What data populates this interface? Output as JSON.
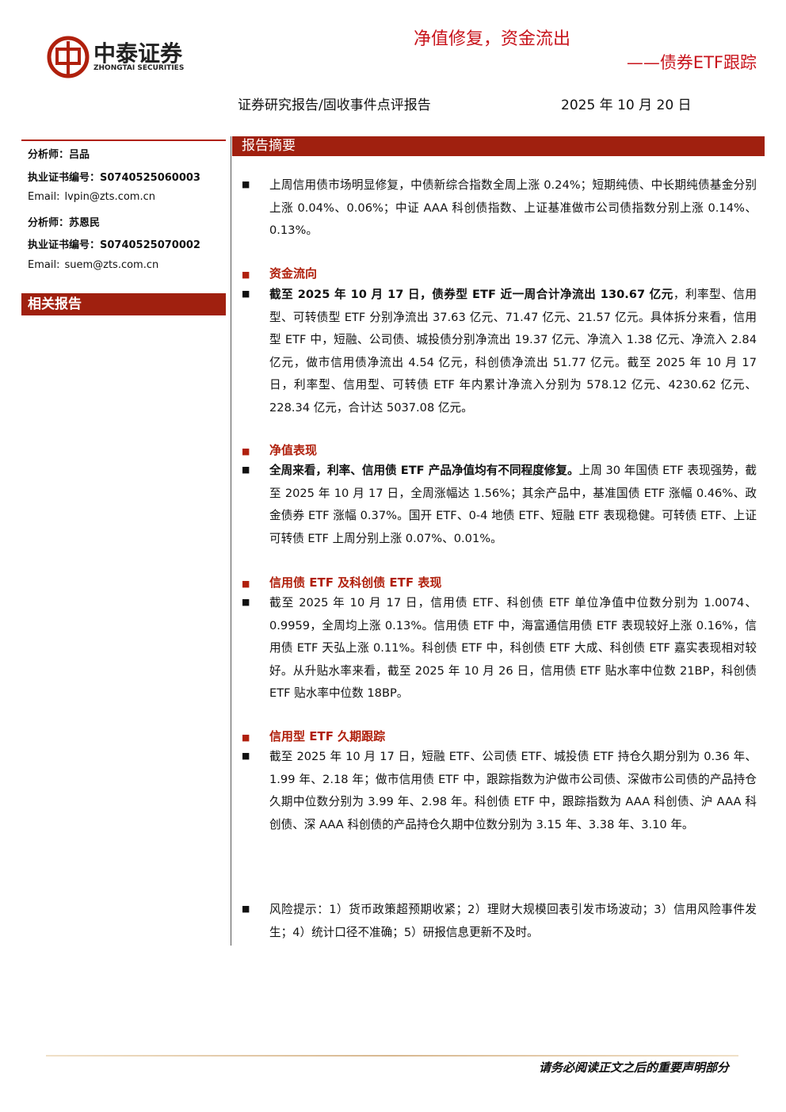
{
  "header": {
    "logo_cn": "中泰证券",
    "logo_en": "ZHONGTAI SECURITIES",
    "title": "净值修复，资金流出",
    "subtitle": "——债券ETF跟踪",
    "report_type": "证券研究报告/固收事件点评报告",
    "date": "2025 年 10 月 20 日"
  },
  "sidebar": {
    "analysts": [
      {
        "label": "分析师：",
        "value": "吕品"
      },
      {
        "label": "执业证书编号：",
        "value": "S0740525060003"
      },
      {
        "label": "Email:",
        "value": "lvpin@zts.com.cn"
      },
      {
        "label": "分析师：",
        "value": "苏恩民"
      },
      {
        "label": "执业证书编号：",
        "value": "S0740525070002"
      },
      {
        "label": "Email:",
        "value": "suem@zts.com.cn"
      }
    ],
    "related_heading": "相关报告"
  },
  "summary": {
    "heading": "报告摘要",
    "intro": "上周信用债市场明显修复，中债新综合指数全周上涨 0.24%；短期纯债、中长期纯债基金分别上涨 0.04%、0.06%；中证 AAA 科创债指数、上证基准做市公司债指数分别上涨 0.14%、0.13%。",
    "sections": [
      {
        "heading": "资金流向",
        "bold": "截至 2025 年 10 月 17 日，债券型 ETF 近一周合计净流出 130.67 亿元",
        "text": "，利率型、信用型、可转债型 ETF 分别净流出 37.63 亿元、71.47 亿元、21.57 亿元。具体拆分来看，信用型 ETF 中，短融、公司债、城投债分别净流出 19.37 亿元、净流入 1.38 亿元、净流入 2.84 亿元，做市信用债净流出 4.54 亿元，科创债净流出 51.77 亿元。截至 2025 年 10 月 17 日，利率型、信用型、可转债 ETF 年内累计净流入分别为 578.12 亿元、4230.62 亿元、228.34 亿元，合计达 5037.08 亿元。"
      },
      {
        "heading": "净值表现",
        "bold": "全周来看，利率、信用债 ETF 产品净值均有不同程度修复。",
        "text": "上周 30 年国债 ETF 表现强势，截至 2025 年 10 月 17 日，全周涨幅达 1.56%；其余产品中，基准国债 ETF 涨幅 0.46%、政金债券 ETF 涨幅 0.37%。国开 ETF、0-4 地债 ETF、短融 ETF 表现稳健。可转债 ETF、上证可转债 ETF 上周分别上涨 0.07%、0.01%。"
      },
      {
        "heading": "信用债 ETF 及科创债 ETF 表现",
        "text": "截至 2025 年 10 月 17 日，信用债 ETF、科创债 ETF 单位净值中位数分别为 1.0074、0.9959，全周均上涨 0.13%。信用债 ETF 中，海富通信用债 ETF 表现较好上涨 0.16%，信用债 ETF 天弘上涨 0.11%。科创债 ETF 中，科创债 ETF 大成、科创债 ETF 嘉实表现相对较好。从升贴水率来看，截至 2025 年 10 月 26 日，信用债 ETF 贴水率中位数 21BP，科创债 ETF 贴水率中位数 18BP。"
      },
      {
        "heading": "信用型 ETF 久期跟踪",
        "text": "截至 2025 年 10 月 17 日，短融 ETF、公司债 ETF、城投债 ETF 持仓久期分别为 0.36 年、1.99 年、2.18 年；做市信用债 ETF 中，跟踪指数为沪做市公司债、深做市公司债的产品持仓久期中位数分别为 3.99 年、2.98 年。科创债 ETF 中，跟踪指数为 AAA 科创债、沪 AAA 科创债、深 AAA 科创债的产品持仓久期中位数分别为 3.15 年、3.38 年、3.10 年。"
      }
    ],
    "risk": "风险提示：1）货币政策超预期收紧；2）理财大规模回表引发市场波动；3）信用风险事件发生；4）统计口径不准确；5）研报信息更新不及时。"
  },
  "footer": {
    "disclaimer": "请务必阅读正文之后的重要声明部分"
  }
}
